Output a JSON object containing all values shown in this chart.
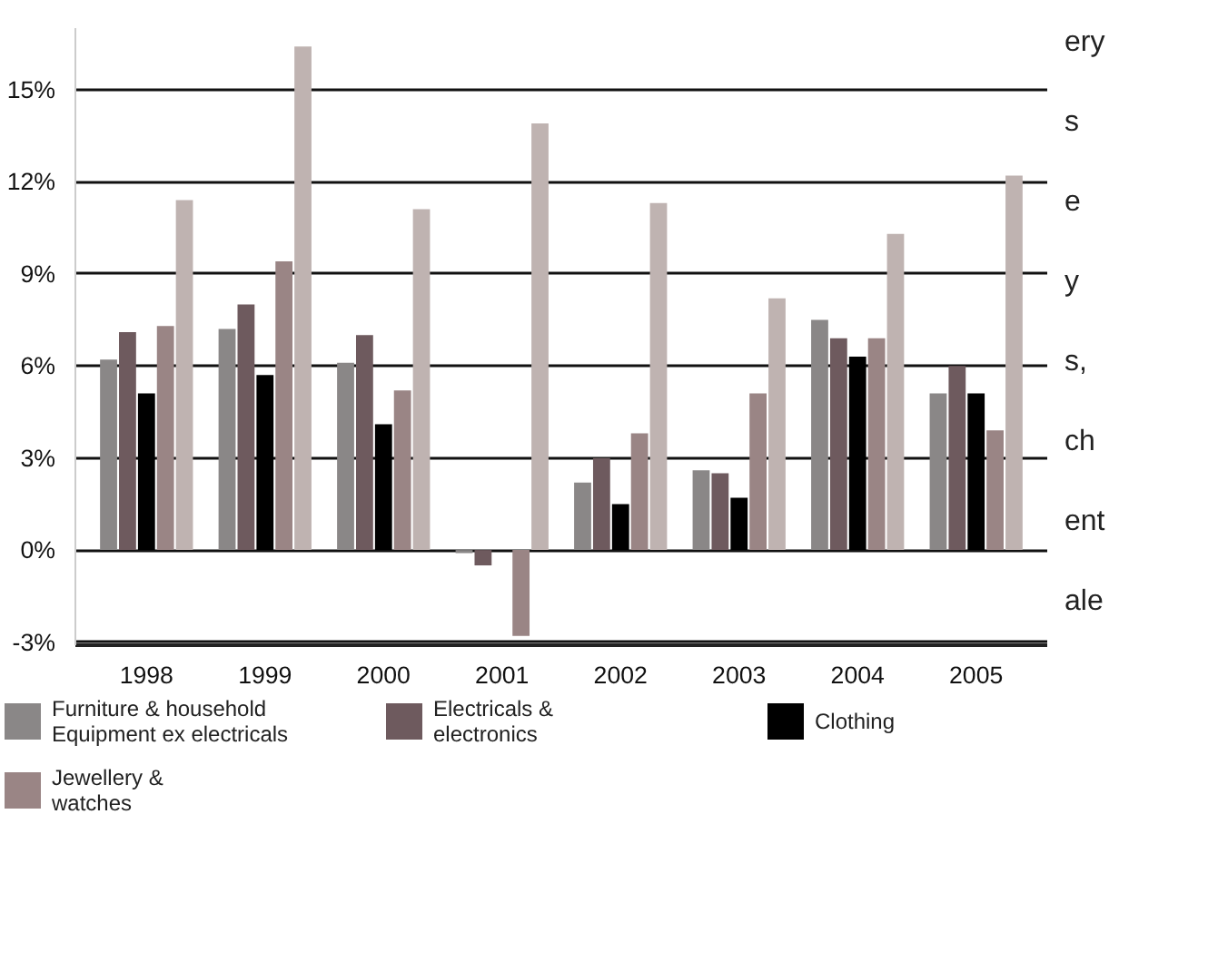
{
  "chart_data": {
    "type": "bar",
    "categories": [
      "1998",
      "1999",
      "2000",
      "2001",
      "2002",
      "2003",
      "2004",
      "2005"
    ],
    "series": [
      {
        "name": "Furniture & household\nEquipment ex electricals",
        "color": "#8a8787",
        "values": [
          6.2,
          7.2,
          6.1,
          -0.1,
          2.2,
          2.6,
          7.5,
          5.1
        ]
      },
      {
        "name": "Electricals &\nelectronics",
        "color": "#6e5a5e",
        "values": [
          7.1,
          8.0,
          7.0,
          -0.5,
          3.0,
          2.5,
          6.9,
          6.0
        ]
      },
      {
        "name": "Clothing",
        "color": "#000000",
        "values": [
          5.1,
          5.7,
          4.1,
          0,
          1.5,
          1.7,
          6.3,
          5.1
        ]
      },
      {
        "name": "Jewellery &\nwatches",
        "color": "#9a8585",
        "values": [
          7.3,
          9.4,
          5.2,
          -2.8,
          3.8,
          5.1,
          6.9,
          3.9
        ]
      },
      {
        "color": "#bfb3b1",
        "values": [
          11.4,
          16.4,
          11.1,
          13.9,
          11.3,
          8.2,
          10.3,
          12.2
        ]
      }
    ],
    "ylim": [
      -3.1,
      17
    ],
    "yticks": [
      {
        "value": -3,
        "label": "-3%"
      },
      {
        "value": 0,
        "label": "0%"
      },
      {
        "value": 3,
        "label": "3%"
      },
      {
        "value": 6,
        "label": "6%"
      },
      {
        "value": 9,
        "label": "9%"
      },
      {
        "value": 12,
        "label": "12%"
      },
      {
        "value": 15,
        "label": "15%"
      }
    ],
    "grid": "y",
    "legend": "bottom",
    "annotations": [
      "ery",
      "s",
      "e",
      "y",
      "s,",
      "ch",
      "ent",
      "ale"
    ]
  }
}
